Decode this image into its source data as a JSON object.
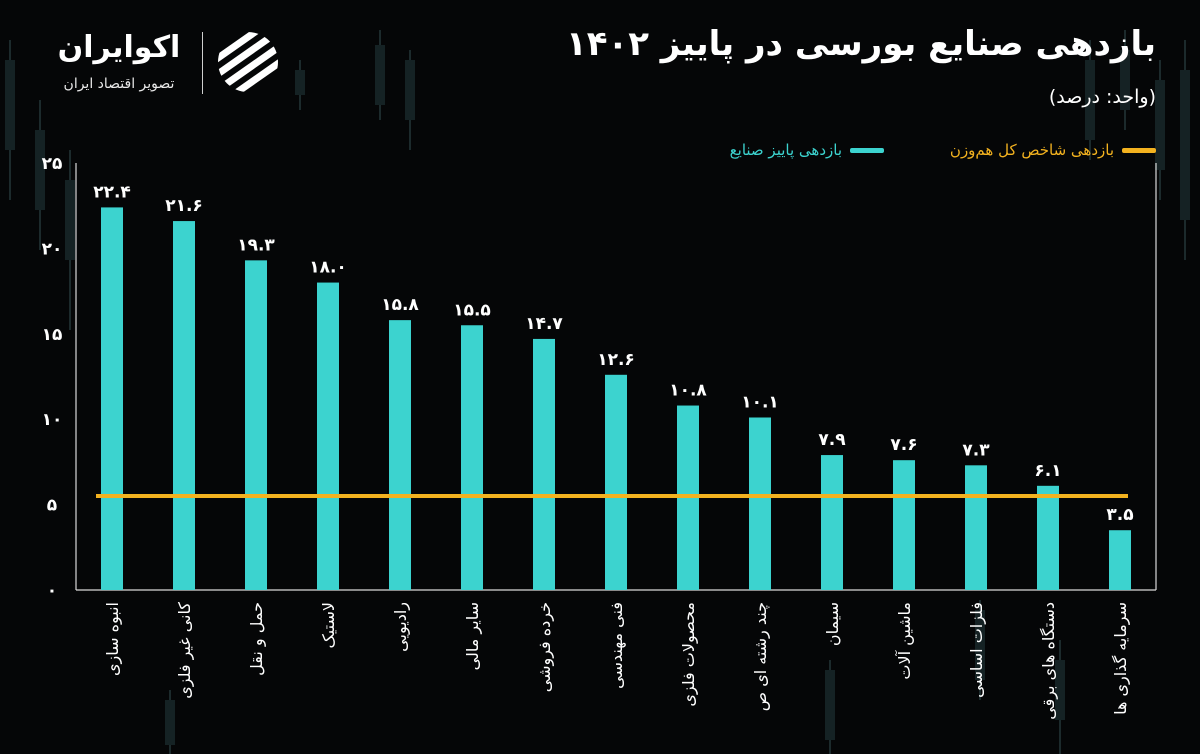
{
  "brand": {
    "name": "اکوایران",
    "tagline": "تصویر اقتصاد ایران",
    "logo_icon": "stripes-circle-logo-icon"
  },
  "title": "بازدهی صنایع بورسی در پاییز ۱۴۰۲",
  "unit": "(واحد: درصد)",
  "colors": {
    "background": "#050607",
    "bar": "#3cd3cf",
    "index_line": "#f3b21f",
    "text": "#ffffff"
  },
  "legend": {
    "industry_label": "بازدهی پاییز صنایع",
    "index_label": "بازدهی شاخص کل هم‌وزن"
  },
  "chart_data": {
    "type": "bar",
    "title": "بازدهی صنایع بورسی در پاییز ۱۴۰۲",
    "subtitle": "(واحد: درصد)",
    "categories": [
      "انبوه سازی",
      "کانی غیر فلزی",
      "حمل و نقل",
      "لاستیک",
      "رادیویی",
      "سایر مالی",
      "خرده فروشی",
      "فنی مهندسی",
      "محصولات فلزی",
      "چند رشته ای ص",
      "سیمان",
      "ماشین آلات",
      "فلزات اساسی",
      "دستگاه های برقی",
      "سرمایه گذاری ها"
    ],
    "series": [
      {
        "name": "بازدهی پاییز صنایع",
        "values": [
          22.4,
          21.6,
          19.3,
          18.0,
          15.8,
          15.5,
          14.7,
          12.6,
          10.8,
          10.1,
          7.9,
          7.6,
          7.3,
          6.1,
          3.5
        ],
        "data_labels": [
          "۲۲.۴",
          "۲۱.۶",
          "۱۹.۳",
          "۱۸.۰",
          "۱۵.۸",
          "۱۵.۵",
          "۱۴.۷",
          "۱۲.۶",
          "۱۰.۸",
          "۱۰.۱",
          "۷.۹",
          "۷.۶",
          "۷.۳",
          "۶.۱",
          "۳.۵"
        ]
      }
    ],
    "reference_line": {
      "name": "بازدهی شاخص کل هم‌وزن",
      "value": 5.5
    },
    "ylim": [
      0,
      25
    ],
    "yticks": [
      0,
      5,
      10,
      15,
      20,
      25
    ],
    "ytick_labels": [
      "۰",
      "۵",
      "۱۰",
      "۱۵",
      "۲۰",
      "۲۵"
    ],
    "grid": false,
    "legend_position": "top-right"
  }
}
